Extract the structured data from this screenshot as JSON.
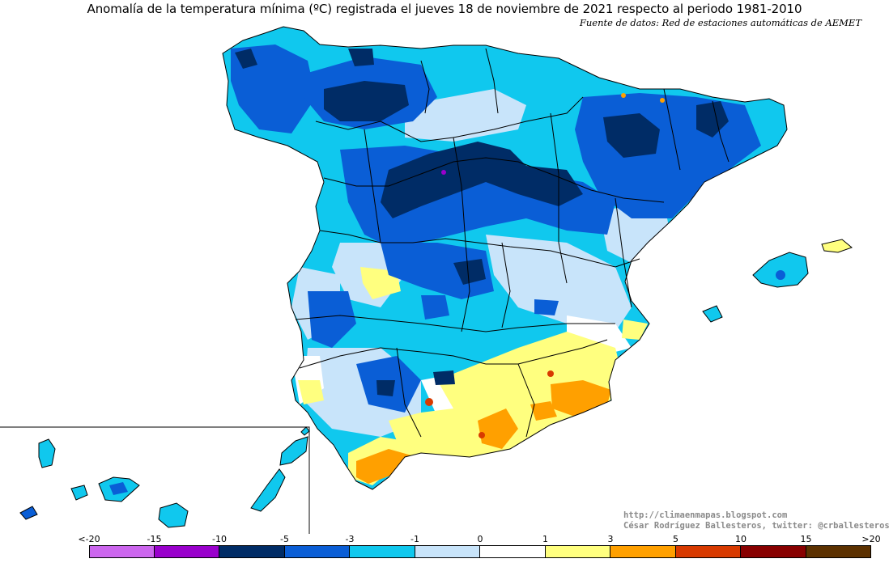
{
  "header": {
    "title": "Anomalía de la temperatura mínima (ºC) registrada el jueves 18 de noviembre de 2021 respecto al periodo 1981-2010",
    "source": "Fuente de datos: Red de estaciones automáticas de AEMET"
  },
  "credits": {
    "blog": "http://climaenmapas.blogspot.com",
    "author": "César Rodríguez Ballesteros, twitter: @crballesteros"
  },
  "legend": {
    "tick_labels": [
      "<-20",
      "-15",
      "-10",
      "-5",
      "-3",
      "-1",
      "0",
      "1",
      "3",
      "5",
      "10",
      "15",
      ">20"
    ],
    "colors": [
      "#cc66ee",
      "#9900cc",
      "#002c66",
      "#0a5ed6",
      "#10c8ee",
      "#c8e4fa",
      "#ffffff",
      "#ffff7f",
      "#ffa000",
      "#d83a00",
      "#880000",
      "#5c3100"
    ]
  },
  "map": {
    "region": "España (península, Baleares y Canarias)",
    "palette": {
      "water": "#ffffff",
      "borders": "#000000",
      "inset_frame": "#333333"
    }
  }
}
